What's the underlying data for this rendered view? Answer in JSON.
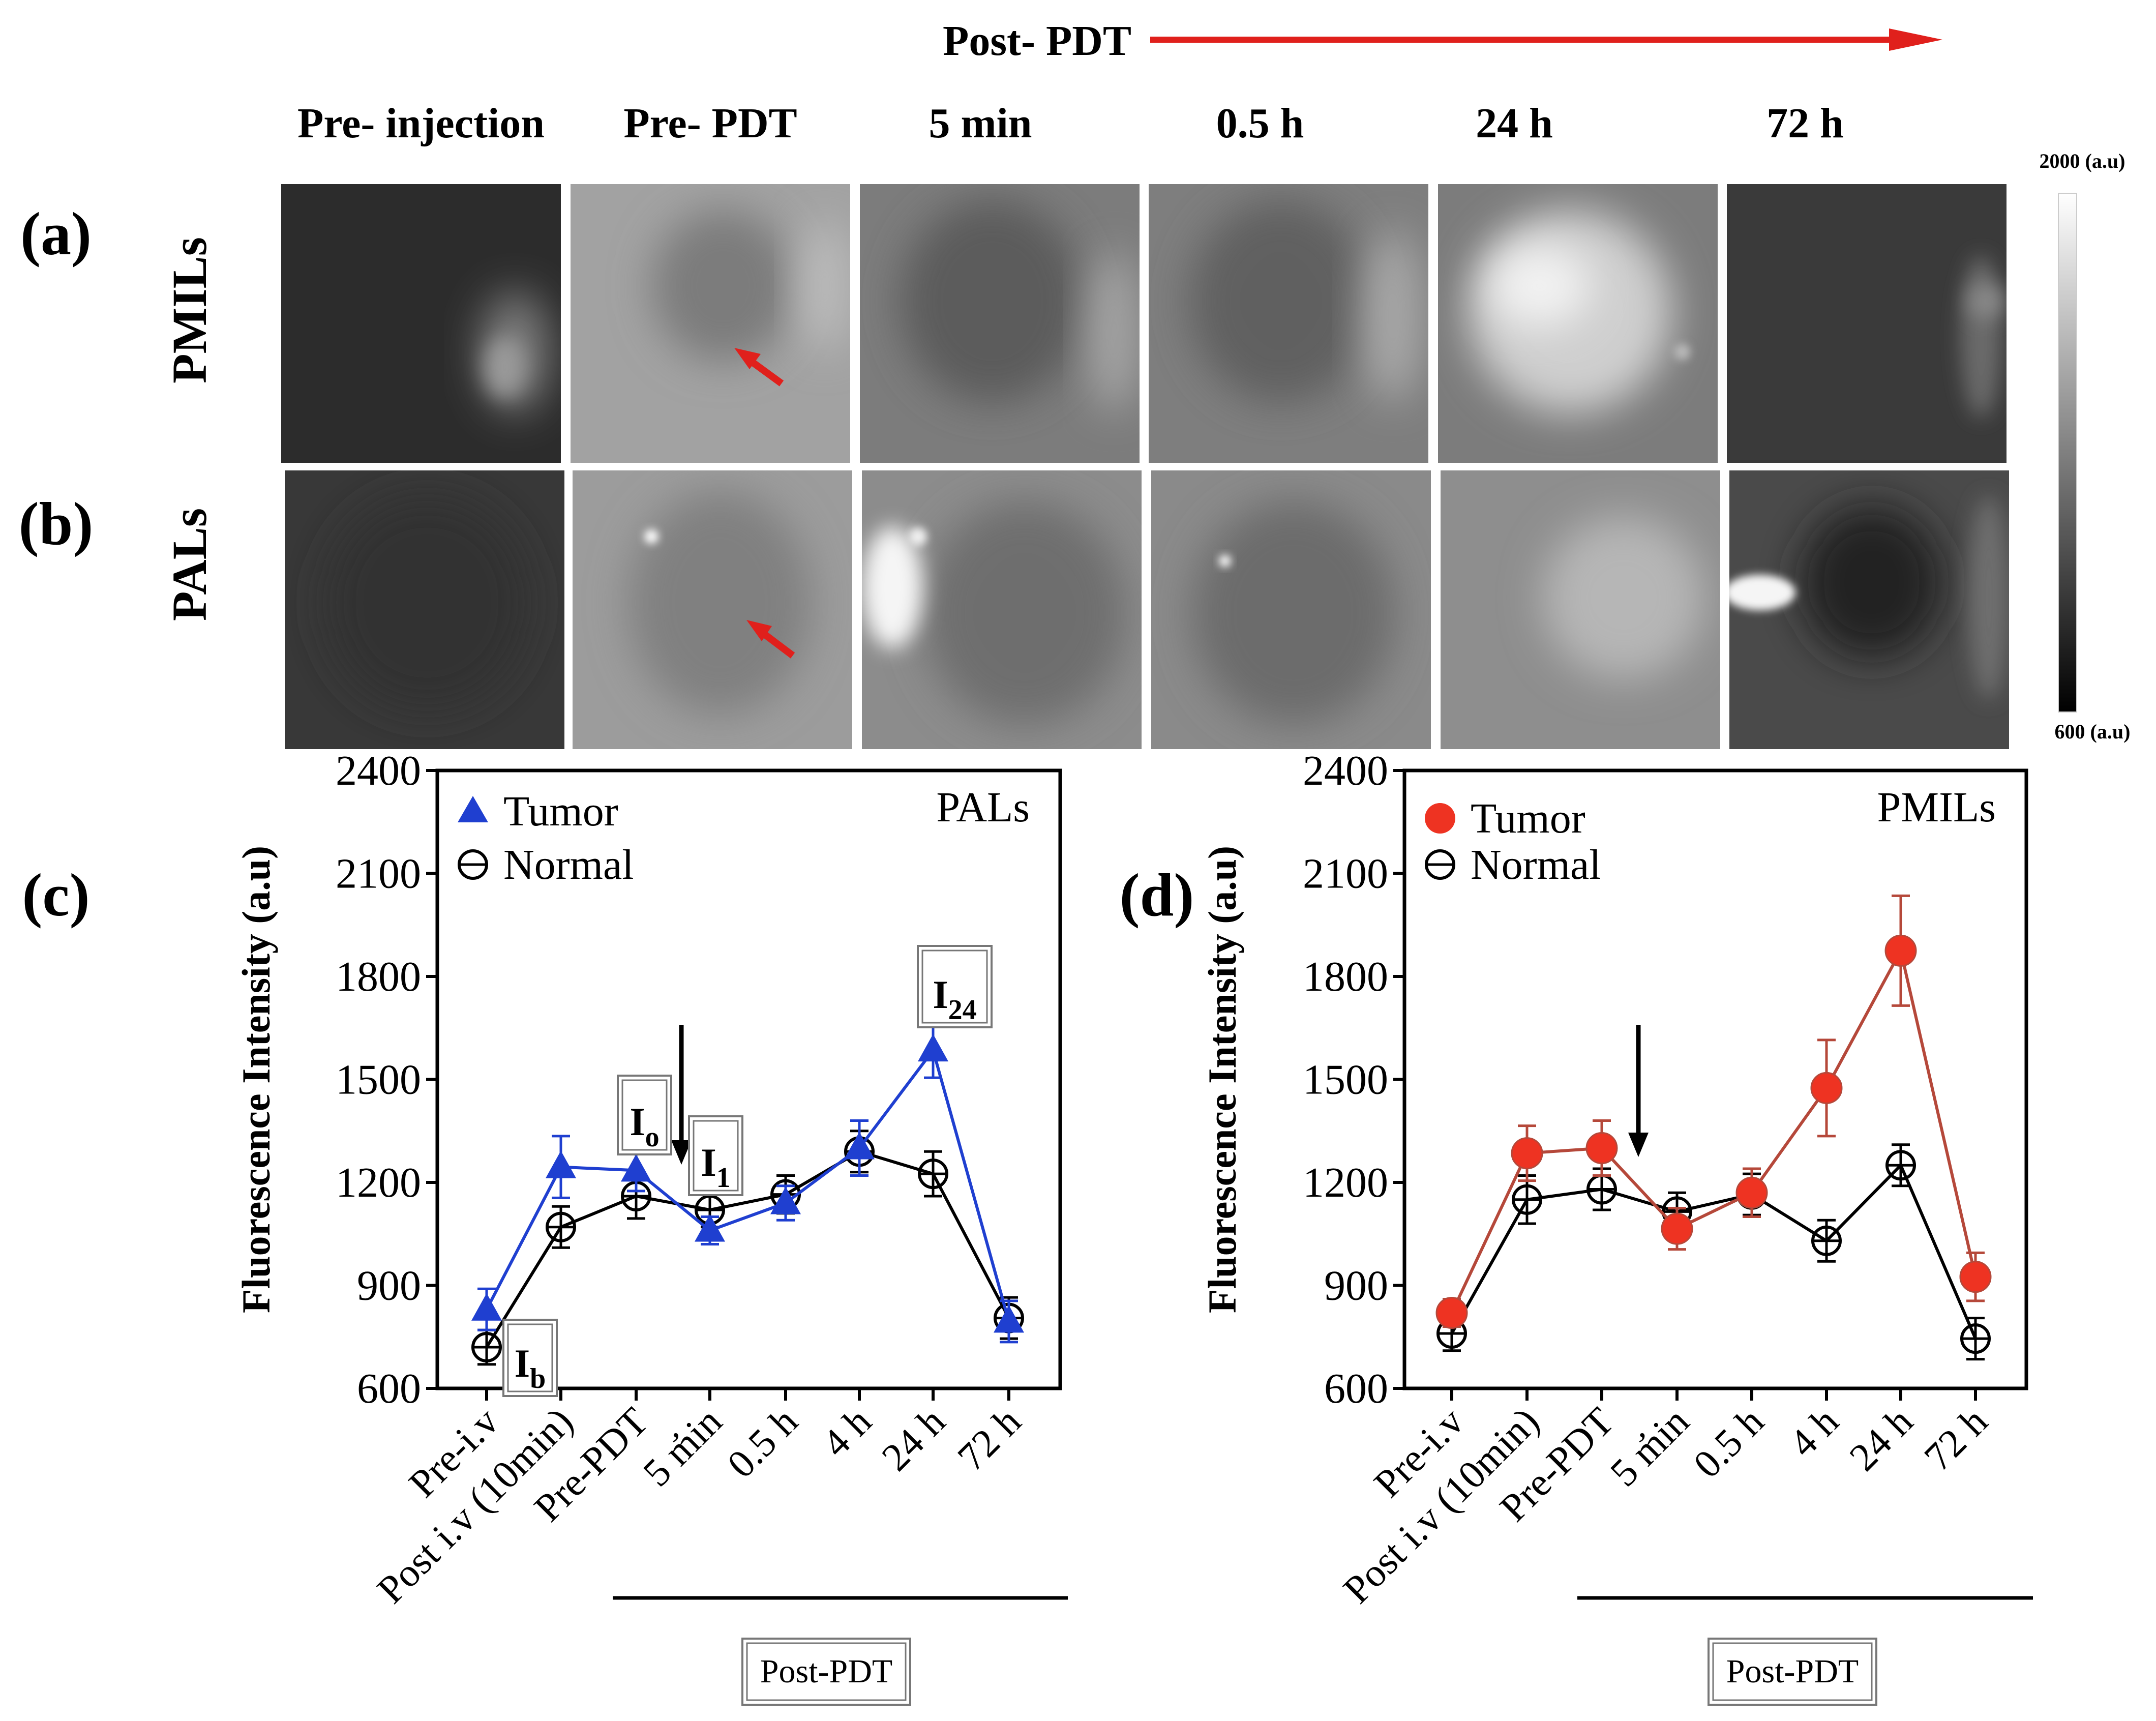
{
  "header": {
    "post_pdt": "Post- PDT",
    "columns": [
      "Pre- injection",
      "Pre- PDT",
      "5 min",
      "0.5 h",
      "24 h",
      "72 h"
    ]
  },
  "rows": [
    {
      "label": "(a)",
      "name": "PMILs"
    },
    {
      "label": "(b)",
      "name": "PALs"
    }
  ],
  "colorbar": {
    "max_label": "2000 (a.u)",
    "min_label": "600 (a.u)"
  },
  "colors": {
    "arrow_red": "#e0201c",
    "pal_blue": "#1f3fd0",
    "pmil_red": "#ee3322",
    "pmil_line": "#b5483a",
    "normal": "#000000"
  },
  "chart_data": [
    {
      "type": "line",
      "panel": "(c)",
      "title": "PALs",
      "ylabel": "Fluorescence Intensity (a.u)",
      "xlabel": "",
      "categories": [
        "Pre-i.v",
        "Post i.v (10min)",
        "Pre-PDT",
        "5 min",
        "0.5 h",
        "4 h",
        "24 h",
        "72 h"
      ],
      "ylim": [
        600,
        2400
      ],
      "yticks": [
        600,
        900,
        1200,
        1500,
        1800,
        2100,
        2400
      ],
      "series": [
        {
          "name": "Tumor",
          "marker": "triangle",
          "values": [
            830,
            1245,
            1235,
            1060,
            1140,
            1300,
            1585,
            795
          ],
          "errors": [
            60,
            90,
            60,
            40,
            50,
            80,
            80,
            60
          ]
        },
        {
          "name": "Normal",
          "marker": "open-circle",
          "values": [
            720,
            1070,
            1160,
            1120,
            1165,
            1290,
            1225,
            805
          ],
          "errors": [
            50,
            60,
            65,
            50,
            55,
            60,
            65,
            60
          ]
        }
      ],
      "annotations": [
        {
          "base": "I",
          "sub": "b"
        },
        {
          "base": "I",
          "sub": "o"
        },
        {
          "base": "I",
          "sub": "1"
        },
        {
          "base": "I",
          "sub": "24"
        }
      ],
      "bracket_label": "Post-PDT"
    },
    {
      "type": "line",
      "panel": "(d)",
      "title": "PMILs",
      "ylabel": "Fluorescence Intensity (a.u)",
      "xlabel": "",
      "categories": [
        "Pre-i.v",
        "Post i.v (10min)",
        "Pre-PDT",
        "5 min",
        "0.5 h",
        "4 h",
        "24 h",
        "72 h"
      ],
      "ylim": [
        600,
        2400
      ],
      "yticks": [
        600,
        900,
        1200,
        1500,
        1800,
        2100,
        2400
      ],
      "series": [
        {
          "name": "Tumor",
          "marker": "filled-circle",
          "values": [
            820,
            1285,
            1300,
            1065,
            1170,
            1475,
            1875,
            925
          ],
          "errors": [
            40,
            80,
            80,
            60,
            70,
            140,
            160,
            70
          ]
        },
        {
          "name": "Normal",
          "marker": "open-circle",
          "values": [
            760,
            1150,
            1180,
            1115,
            1165,
            1030,
            1250,
            745
          ],
          "errors": [
            50,
            70,
            60,
            55,
            60,
            60,
            60,
            60
          ]
        }
      ],
      "bracket_label": "Post-PDT"
    }
  ]
}
